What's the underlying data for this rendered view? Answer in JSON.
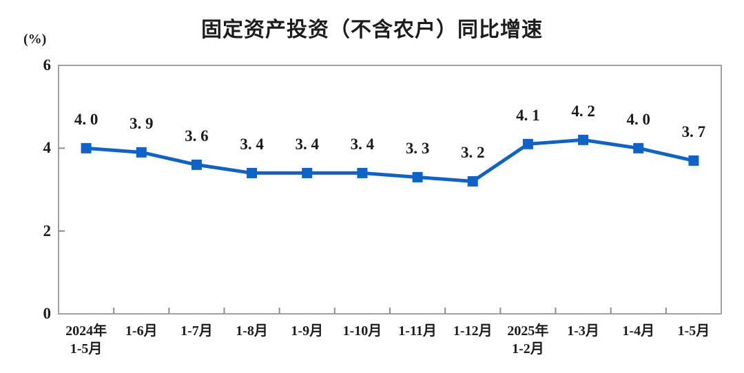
{
  "chart_data": {
    "type": "line",
    "title": "固定资产投资（不含农户）同比增速",
    "unit_label": "(%)",
    "xlabel": "",
    "ylabel": "(%)",
    "categories": [
      "2024年\n1-5月",
      "1-6月",
      "1-7月",
      "1-8月",
      "1-9月",
      "1-10月",
      "1-11月",
      "1-12月",
      "2025年\n1-2月",
      "1-3月",
      "1-4月",
      "1-5月"
    ],
    "values": [
      4.0,
      3.9,
      3.6,
      3.4,
      3.4,
      3.4,
      3.3,
      3.2,
      4.1,
      4.2,
      4.0,
      3.7
    ],
    "point_labels": [
      "4. 0",
      "3. 9",
      "3. 6",
      "3. 4",
      "3. 4",
      "3. 4",
      "3. 3",
      "3. 2",
      "4. 1",
      "4. 2",
      "4. 0",
      "3. 7"
    ],
    "yticks": [
      0,
      2,
      4,
      6
    ],
    "ylim": [
      0,
      6
    ],
    "grid": false,
    "legend": "none",
    "marker": "square",
    "line_color": "#0f63c8",
    "axis_color": "#a0a0a0",
    "tick_color": "#8c8c8c",
    "text_color": "#1c1c1c"
  }
}
